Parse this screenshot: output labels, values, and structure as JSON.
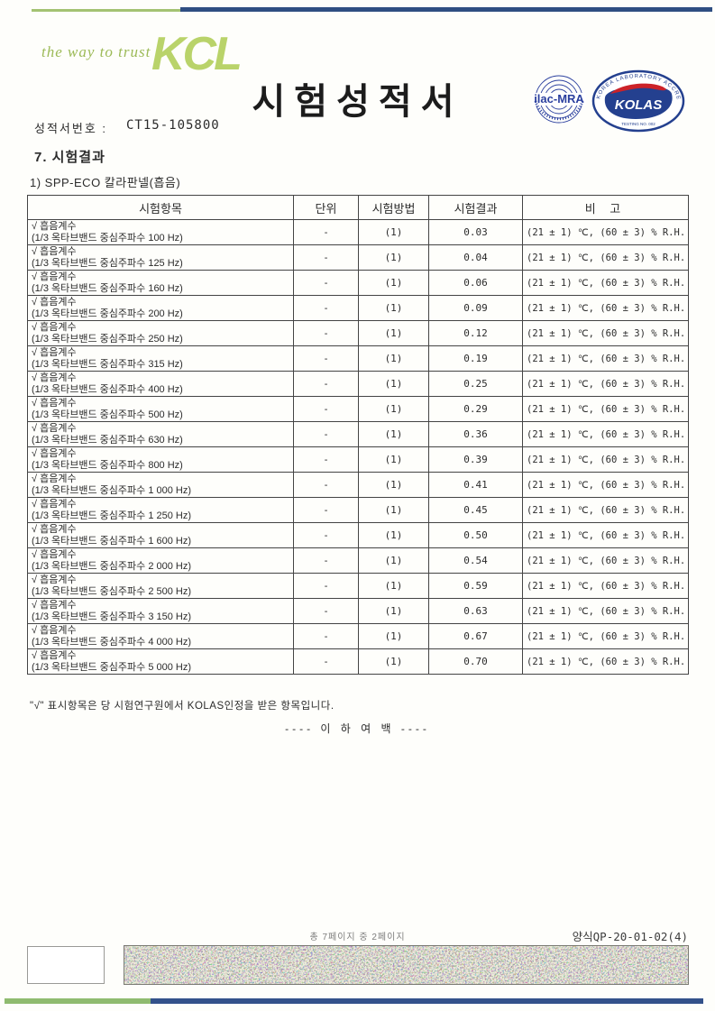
{
  "header": {
    "tagline": "the way to trust",
    "logo_text": "KCL",
    "title": "시험성적서",
    "report_no_label": "성적서번호 :",
    "report_no_value": "CT15-105800"
  },
  "logos": {
    "ilac_mra_text": "ilac-MRA",
    "kolas_text": "KOLAS",
    "kolas_ring_text": "KOREA LABORATORY ACCREDITATION SCHEME",
    "kolas_sub_text": "TESTING  NO. 002"
  },
  "section": {
    "title": "7. 시험결과",
    "subtitle": "1) SPP-ECO 칼라판넬(흡음)"
  },
  "table": {
    "headers": [
      "시험항목",
      "단위",
      "시험방법",
      "시험결과",
      "비  고"
    ],
    "rows": [
      {
        "item_line1": "√ 흡음계수",
        "item_line2": "(1/3 옥타브밴드 중심주파수 100 Hz)",
        "unit": "-",
        "method": "(1)",
        "result": "0.03",
        "remark": "(21 ± 1) ℃, (60 ± 3) % R.H."
      },
      {
        "item_line1": "√ 흡음계수",
        "item_line2": "(1/3 옥타브밴드 중심주파수 125 Hz)",
        "unit": "-",
        "method": "(1)",
        "result": "0.04",
        "remark": "(21 ± 1) ℃, (60 ± 3) % R.H."
      },
      {
        "item_line1": "√ 흡음계수",
        "item_line2": "(1/3 옥타브밴드 중심주파수 160 Hz)",
        "unit": "-",
        "method": "(1)",
        "result": "0.06",
        "remark": "(21 ± 1) ℃, (60 ± 3) % R.H."
      },
      {
        "item_line1": "√ 흡음계수",
        "item_line2": "(1/3 옥타브밴드 중심주파수 200 Hz)",
        "unit": "-",
        "method": "(1)",
        "result": "0.09",
        "remark": "(21 ± 1) ℃, (60 ± 3) % R.H."
      },
      {
        "item_line1": "√ 흡음계수",
        "item_line2": "(1/3 옥타브밴드 중심주파수 250 Hz)",
        "unit": "-",
        "method": "(1)",
        "result": "0.12",
        "remark": "(21 ± 1) ℃, (60 ± 3) % R.H."
      },
      {
        "item_line1": "√ 흡음계수",
        "item_line2": "(1/3 옥타브밴드 중심주파수 315 Hz)",
        "unit": "-",
        "method": "(1)",
        "result": "0.19",
        "remark": "(21 ± 1) ℃, (60 ± 3) % R.H."
      },
      {
        "item_line1": "√ 흡음계수",
        "item_line2": "(1/3 옥타브밴드 중심주파수 400 Hz)",
        "unit": "-",
        "method": "(1)",
        "result": "0.25",
        "remark": "(21 ± 1) ℃, (60 ± 3) % R.H."
      },
      {
        "item_line1": "√ 흡음계수",
        "item_line2": "(1/3 옥타브밴드 중심주파수 500 Hz)",
        "unit": "-",
        "method": "(1)",
        "result": "0.29",
        "remark": "(21 ± 1) ℃, (60 ± 3) % R.H."
      },
      {
        "item_line1": "√ 흡음계수",
        "item_line2": "(1/3 옥타브밴드 중심주파수 630 Hz)",
        "unit": "-",
        "method": "(1)",
        "result": "0.36",
        "remark": "(21 ± 1) ℃, (60 ± 3) % R.H."
      },
      {
        "item_line1": "√ 흡음계수",
        "item_line2": "(1/3 옥타브밴드 중심주파수 800 Hz)",
        "unit": "-",
        "method": "(1)",
        "result": "0.39",
        "remark": "(21 ± 1) ℃, (60 ± 3) % R.H."
      },
      {
        "item_line1": "√ 흡음계수",
        "item_line2": "(1/3 옥타브밴드 중심주파수 1 000 Hz)",
        "unit": "-",
        "method": "(1)",
        "result": "0.41",
        "remark": "(21 ± 1) ℃, (60 ± 3) % R.H."
      },
      {
        "item_line1": "√ 흡음계수",
        "item_line2": "(1/3 옥타브밴드 중심주파수 1 250 Hz)",
        "unit": "-",
        "method": "(1)",
        "result": "0.45",
        "remark": "(21 ± 1) ℃, (60 ± 3) % R.H."
      },
      {
        "item_line1": "√ 흡음계수",
        "item_line2": "(1/3 옥타브밴드 중심주파수 1 600 Hz)",
        "unit": "-",
        "method": "(1)",
        "result": "0.50",
        "remark": "(21 ± 1) ℃, (60 ± 3) % R.H."
      },
      {
        "item_line1": "√ 흡음계수",
        "item_line2": "(1/3 옥타브밴드 중심주파수 2 000 Hz)",
        "unit": "-",
        "method": "(1)",
        "result": "0.54",
        "remark": "(21 ± 1) ℃, (60 ± 3) % R.H."
      },
      {
        "item_line1": "√ 흡음계수",
        "item_line2": "(1/3 옥타브밴드 중심주파수 2 500 Hz)",
        "unit": "-",
        "method": "(1)",
        "result": "0.59",
        "remark": "(21 ± 1) ℃, (60 ± 3) % R.H."
      },
      {
        "item_line1": "√ 흡음계수",
        "item_line2": "(1/3 옥타브밴드 중심주파수 3 150 Hz)",
        "unit": "-",
        "method": "(1)",
        "result": "0.63",
        "remark": "(21 ± 1) ℃, (60 ± 3) % R.H."
      },
      {
        "item_line1": "√ 흡음계수",
        "item_line2": "(1/3 옥타브밴드 중심주파수 4 000 Hz)",
        "unit": "-",
        "method": "(1)",
        "result": "0.67",
        "remark": "(21 ± 1) ℃, (60 ± 3) % R.H."
      },
      {
        "item_line1": "√ 흡음계수",
        "item_line2": "(1/3 옥타브밴드 중심주파수 5 000 Hz)",
        "unit": "-",
        "method": "(1)",
        "result": "0.70",
        "remark": "(21 ± 1) ℃, (60 ± 3) % R.H."
      }
    ]
  },
  "notes": {
    "footnote": "\"√\" 표시항목은 당 시험연구원에서 KOLAS인정을 받은 항목입니다.",
    "end_of_content": "---- 이 하 여 백 ----"
  },
  "footer": {
    "page_indicator": "총 7페이지 중 2페이지",
    "form_code": "양식QP-20-01-02(4)"
  },
  "colors": {
    "accent_green": "#a3c272",
    "accent_navy": "#2f4e82",
    "kcl_green": "#b9d36a",
    "kolas_navy": "#24408f",
    "kolas_red": "#cc2229",
    "ilac_blue": "#2a3f9e"
  }
}
